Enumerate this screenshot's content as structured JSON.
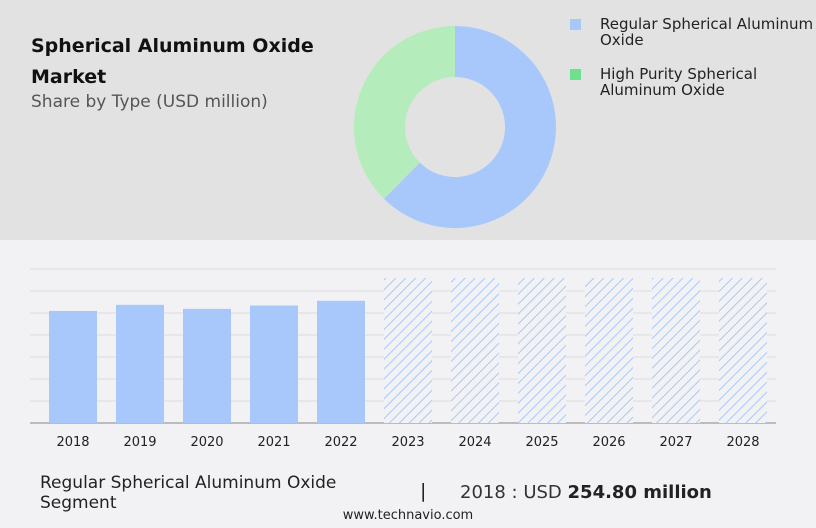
{
  "title": "Spherical Aluminum Oxide Market",
  "subtitle": "Share by Type (USD million)",
  "colors": {
    "regular": "#a8c8fc",
    "high_purity": "#b5ecbb",
    "high_purity_legend": "#6fe08e",
    "header_bg": "#e2e2e2",
    "body_bg": "#f2f2f4"
  },
  "chart_data": [
    {
      "type": "pie",
      "donut": true,
      "categories": [
        "Regular Spherical Aluminum Oxide",
        "High Purity Spherical Aluminum Oxide"
      ],
      "values": [
        62.4,
        37.6
      ],
      "legend": "right"
    },
    {
      "type": "bar",
      "categories": [
        "2018",
        "2019",
        "2020",
        "2021",
        "2022",
        "2023",
        "2024",
        "2025",
        "2026",
        "2027",
        "2028"
      ],
      "values": [
        254.8,
        268.6,
        259.4,
        267.0,
        277.7,
        null,
        null,
        null,
        null,
        null,
        null
      ],
      "forecast_categories": [
        "2023",
        "2024",
        "2025",
        "2026",
        "2027",
        "2028"
      ],
      "ylim": [
        0,
        350
      ],
      "grid": true
    }
  ],
  "legend": [
    {
      "label": "Regular Spherical Aluminum Oxide"
    },
    {
      "label": "High Purity Spherical Aluminum Oxide"
    }
  ],
  "footer": {
    "segment": "Regular Spherical Aluminum Oxide Segment",
    "separator": "|",
    "year_prefix": "2018 : USD",
    "value": "254.80 million",
    "site": "www.technavio.com"
  }
}
